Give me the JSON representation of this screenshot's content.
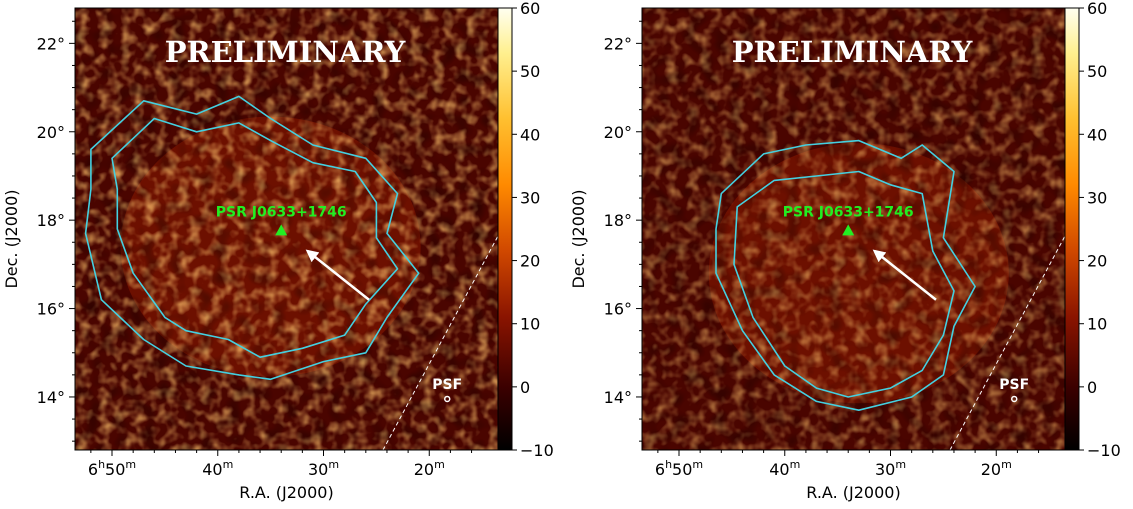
{
  "chart_data": [
    {
      "type": "heatmap",
      "title": "",
      "xlabel": "R.A. (J2000)",
      "ylabel": "Dec. (J2000)",
      "x_ticks": [
        {
          "ra_min": 50,
          "h": "6",
          "m": "50"
        },
        {
          "ra_min": 40,
          "h": "",
          "m": "40"
        },
        {
          "ra_min": 30,
          "h": "",
          "m": "30"
        },
        {
          "ra_min": 20,
          "h": "",
          "m": "20"
        }
      ],
      "y_ticks": [
        "22°",
        "20°",
        "18°",
        "16°",
        "14°"
      ],
      "y_tick_values": [
        22,
        20,
        18,
        16,
        14
      ],
      "xlim_ra_min": [
        53.5,
        13.5
      ],
      "ylim_deg": [
        12.8,
        22.8
      ],
      "colorbar": {
        "ticks": [
          60,
          50,
          40,
          30,
          20,
          10,
          0,
          -10
        ],
        "range": [
          -10,
          60
        ]
      },
      "watermark": "PRELIMINARY",
      "source": {
        "name": "PSR J0633+1746",
        "ra_min": 34,
        "dec": 17.77
      },
      "arrow": {
        "from_ra_min": 25.7,
        "from_dec": 16.2,
        "to_ra_min": 31.5,
        "to_dec": 17.3
      },
      "psf_label": "PSF",
      "psf_position": {
        "ra_min": 18.3,
        "dec": 14.0
      },
      "excess_center": {
        "ra_min": 35,
        "dec": 17.4
      },
      "contours": [
        {
          "level": "outer",
          "color": "#44d0e0"
        },
        {
          "level": "inner",
          "color": "#44d0e0"
        }
      ],
      "grid": false,
      "colormap": "afmhot"
    },
    {
      "type": "heatmap",
      "title": "",
      "xlabel": "R.A. (J2000)",
      "ylabel": "Dec. (J2000)",
      "x_ticks": [
        {
          "ra_min": 50,
          "h": "6",
          "m": "50"
        },
        {
          "ra_min": 40,
          "h": "",
          "m": "40"
        },
        {
          "ra_min": 30,
          "h": "",
          "m": "30"
        },
        {
          "ra_min": 20,
          "h": "",
          "m": "20"
        }
      ],
      "y_ticks": [
        "22°",
        "20°",
        "18°",
        "16°",
        "14°"
      ],
      "y_tick_values": [
        22,
        20,
        18,
        16,
        14
      ],
      "xlim_ra_min": [
        53.5,
        13.5
      ],
      "ylim_deg": [
        12.8,
        22.8
      ],
      "colorbar": {
        "ticks": [
          60,
          50,
          40,
          30,
          20,
          10,
          0,
          -10
        ],
        "range": [
          -10,
          60
        ]
      },
      "watermark": "PRELIMINARY",
      "source": {
        "name": "PSR J0633+1746",
        "ra_min": 34,
        "dec": 17.77
      },
      "arrow": {
        "from_ra_min": 25.7,
        "from_dec": 16.2,
        "to_ra_min": 31.5,
        "to_dec": 17.3
      },
      "psf_label": "PSF",
      "psf_position": {
        "ra_min": 18.3,
        "dec": 14.0
      },
      "excess_center": {
        "ra_min": 33,
        "dec": 16.8
      },
      "contours": [
        {
          "level": "outer",
          "color": "#44d0e0"
        },
        {
          "level": "inner",
          "color": "#44d0e0"
        }
      ],
      "grid": false,
      "colormap": "afmhot"
    }
  ]
}
